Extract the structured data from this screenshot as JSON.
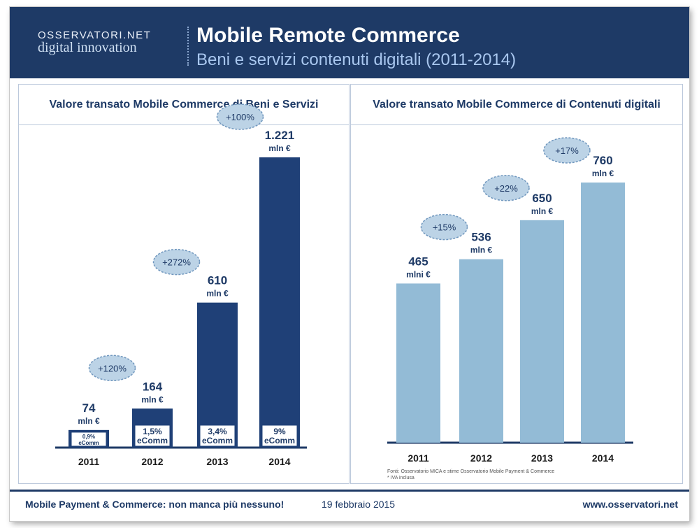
{
  "header": {
    "logo_top": "OSSERVATORI.NET",
    "logo_bottom": "digital innovation",
    "title": "Mobile Remote Commerce",
    "subtitle": "Beni e servizi  contenuti digitali (2011-2014)"
  },
  "colors": {
    "header_bg": "#1e3a66",
    "bar_dark": "#1f4077",
    "bar_light": "#93bbd6",
    "bubble": "#bcd3e6",
    "text_dark": "#1e3a66"
  },
  "chart_data": [
    {
      "type": "bar",
      "title": "Valore transato Mobile Commerce di Beni e Servizi",
      "categories": [
        "2011",
        "2012",
        "2013",
        "2014"
      ],
      "values": [
        74,
        164,
        610,
        1221
      ],
      "value_labels": [
        "74",
        "164",
        "610",
        "1.221"
      ],
      "unit_labels": [
        "mln €",
        "mln  €",
        "mln €",
        "mln €"
      ],
      "ecomm_labels": [
        [
          "0,9%",
          "eComm"
        ],
        [
          "1,5%",
          "eComm"
        ],
        [
          "3,4%",
          "eComm"
        ],
        [
          "9%",
          "eComm"
        ]
      ],
      "growth_labels": [
        "+120%",
        "+272%",
        "+100%"
      ],
      "ylim": [
        0,
        1221
      ]
    },
    {
      "type": "bar",
      "title": "Valore transato Mobile Commerce di Contenuti digitali",
      "categories": [
        "2011",
        "2012",
        "2013",
        "2014"
      ],
      "values": [
        465,
        536,
        650,
        760
      ],
      "value_labels": [
        "465",
        "536",
        "650",
        "760"
      ],
      "unit_labels": [
        "mlni €",
        "mln €",
        "mln €",
        "mln €"
      ],
      "growth_labels": [
        "+15%",
        "+22%",
        "+17%"
      ],
      "ylim": [
        0,
        760
      ],
      "source": [
        "Fonti: Osservatorio MICA e stime Osservatorio Mobile Payment & Commerce",
        "* IVA inclusa"
      ]
    }
  ],
  "footer": {
    "left": "Mobile Payment & Commerce: non manca più nessuno!",
    "date": "19 febbraio 2015",
    "url": "www.osservatori.net"
  }
}
